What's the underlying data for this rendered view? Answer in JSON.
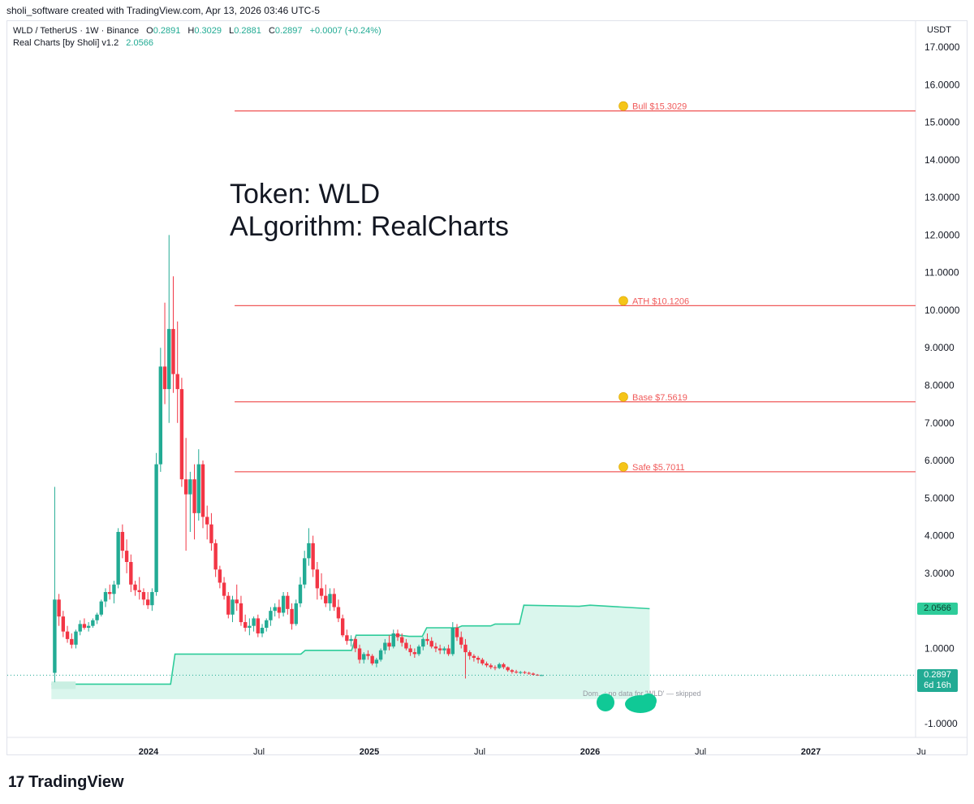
{
  "caption": "sholi_software created with TradingView.com, Apr 13, 2026 03:46 UTC-5",
  "legend": {
    "symbol": "WLD / TetherUS · 1W · Binance",
    "open_label": "O",
    "open": "0.2891",
    "high_label": "H",
    "high": "0.3029",
    "low_label": "L",
    "low": "0.2881",
    "close_label": "C",
    "close": "0.2897",
    "change": "+0.0007 (+0.24%)",
    "indicator_name": "Real Charts [by Sholi] v1.2",
    "indicator_value": "2.0566"
  },
  "annotation": {
    "line1": "Token: WLD",
    "line2": "ALgorithm: RealCharts"
  },
  "currency": "USDT",
  "badges": {
    "indicator": "2.0566",
    "last_price": "0.2897",
    "countdown": "6d 16h"
  },
  "footer": {
    "brand": "TradingView",
    "mark": "17"
  },
  "colors": {
    "up": "#22ab94",
    "down": "#f23645",
    "level": "#f05a5a",
    "fill": "#d8f5ec",
    "line": "#2ecc9a"
  },
  "chart_data": {
    "type": "candlestick",
    "ylim": [
      -1.3,
      17.6
    ],
    "yticks": [
      "17.0000",
      "16.0000",
      "15.0000",
      "14.0000",
      "13.0000",
      "12.0000",
      "11.0000",
      "10.0000",
      "9.0000",
      "8.0000",
      "7.0000",
      "6.0000",
      "5.0000",
      "4.0000",
      "3.0000",
      "2.0000",
      "1.0000",
      "-1.0000"
    ],
    "ytick_values": [
      17,
      16,
      15,
      14,
      13,
      12,
      11,
      10,
      9,
      8,
      7,
      6,
      5,
      4,
      3,
      2,
      1,
      -1
    ],
    "xlim_months": [
      2023.55,
      2027.0
    ],
    "xticks": [
      {
        "label": "2024",
        "t": 2024.0,
        "bold": true
      },
      {
        "label": "Jul",
        "t": 2024.5,
        "bold": false
      },
      {
        "label": "2025",
        "t": 2025.0,
        "bold": true
      },
      {
        "label": "Jul",
        "t": 2025.5,
        "bold": false
      },
      {
        "label": "2026",
        "t": 2026.0,
        "bold": true
      },
      {
        "label": "Jul",
        "t": 2026.5,
        "bold": false
      },
      {
        "label": "2027",
        "t": 2027.0,
        "bold": true
      },
      {
        "label": "Ju",
        "t": 2027.5,
        "bold": false
      }
    ],
    "levels": [
      {
        "name": "Bull",
        "label": "Bull  $15.3029",
        "value": 15.3029,
        "start": 2024.39
      },
      {
        "name": "ATH",
        "label": "ATH  $10.1206",
        "value": 10.1206,
        "start": 2024.39
      },
      {
        "name": "Base",
        "label": "Base  $7.5619",
        "value": 7.5619,
        "start": 2024.39
      },
      {
        "name": "Safe",
        "label": "Safe  $5.7011",
        "value": 5.7011,
        "start": 2024.39
      }
    ],
    "indicator_steps": [
      [
        2023.56,
        0.15
      ],
      [
        2023.67,
        0.15
      ],
      [
        2023.67,
        0.1
      ],
      [
        2023.66,
        0.1
      ],
      [
        2023.66,
        -0.08
      ],
      [
        2023.56,
        -0.08
      ]
    ],
    "indicator_line": [
      [
        2023.56,
        0.05
      ],
      [
        2024.1,
        0.05
      ],
      [
        2024.12,
        0.85
      ],
      [
        2024.69,
        0.85
      ],
      [
        2024.71,
        0.95
      ],
      [
        2024.92,
        0.95
      ],
      [
        2024.94,
        1.35
      ],
      [
        2025.14,
        1.35
      ],
      [
        2025.18,
        1.32
      ],
      [
        2025.24,
        1.32
      ],
      [
        2025.26,
        1.55
      ],
      [
        2025.4,
        1.55
      ],
      [
        2025.42,
        1.6
      ],
      [
        2025.55,
        1.6
      ],
      [
        2025.57,
        1.65
      ],
      [
        2025.68,
        1.65
      ],
      [
        2025.7,
        2.15
      ],
      [
        2025.95,
        2.12
      ],
      [
        2026.0,
        2.15
      ],
      [
        2026.27,
        2.0566
      ]
    ],
    "fill_bottom": -0.35,
    "last_price": 0.2897,
    "note": "Dom...: no data for 'WLD' — skipped",
    "candles": [
      {
        "o": 0.35,
        "h": 5.3,
        "l": 0.1,
        "c": 2.3
      },
      {
        "o": 2.3,
        "h": 2.45,
        "l": 1.6,
        "c": 1.85
      },
      {
        "o": 1.85,
        "h": 2.0,
        "l": 1.3,
        "c": 1.45
      },
      {
        "o": 1.45,
        "h": 1.6,
        "l": 1.15,
        "c": 1.25
      },
      {
        "o": 1.25,
        "h": 1.4,
        "l": 1.0,
        "c": 1.1
      },
      {
        "o": 1.1,
        "h": 1.5,
        "l": 1.0,
        "c": 1.45
      },
      {
        "o": 1.45,
        "h": 1.75,
        "l": 1.35,
        "c": 1.65
      },
      {
        "o": 1.65,
        "h": 1.8,
        "l": 1.5,
        "c": 1.55
      },
      {
        "o": 1.55,
        "h": 1.7,
        "l": 1.45,
        "c": 1.6
      },
      {
        "o": 1.6,
        "h": 1.8,
        "l": 1.55,
        "c": 1.75
      },
      {
        "o": 1.75,
        "h": 1.95,
        "l": 1.65,
        "c": 1.9
      },
      {
        "o": 1.9,
        "h": 2.3,
        "l": 1.85,
        "c": 2.25
      },
      {
        "o": 2.25,
        "h": 2.6,
        "l": 2.1,
        "c": 2.5
      },
      {
        "o": 2.5,
        "h": 2.7,
        "l": 2.3,
        "c": 2.45
      },
      {
        "o": 2.45,
        "h": 2.8,
        "l": 2.2,
        "c": 2.7
      },
      {
        "o": 2.7,
        "h": 4.2,
        "l": 2.6,
        "c": 4.1
      },
      {
        "o": 4.1,
        "h": 4.3,
        "l": 3.4,
        "c": 3.6
      },
      {
        "o": 3.6,
        "h": 3.9,
        "l": 3.0,
        "c": 3.3
      },
      {
        "o": 3.3,
        "h": 3.5,
        "l": 2.5,
        "c": 2.7
      },
      {
        "o": 2.7,
        "h": 2.8,
        "l": 2.4,
        "c": 2.55
      },
      {
        "o": 2.55,
        "h": 2.9,
        "l": 2.3,
        "c": 2.5
      },
      {
        "o": 2.5,
        "h": 2.6,
        "l": 2.15,
        "c": 2.3
      },
      {
        "o": 2.3,
        "h": 2.5,
        "l": 2.05,
        "c": 2.15
      },
      {
        "o": 2.15,
        "h": 2.6,
        "l": 2.0,
        "c": 2.5
      },
      {
        "o": 2.5,
        "h": 6.2,
        "l": 2.4,
        "c": 5.9
      },
      {
        "o": 5.9,
        "h": 9.0,
        "l": 5.7,
        "c": 8.5
      },
      {
        "o": 8.5,
        "h": 10.2,
        "l": 7.5,
        "c": 7.9
      },
      {
        "o": 7.9,
        "h": 12.0,
        "l": 7.0,
        "c": 9.5
      },
      {
        "o": 9.5,
        "h": 10.9,
        "l": 7.8,
        "c": 8.3
      },
      {
        "o": 8.3,
        "h": 9.7,
        "l": 7.0,
        "c": 7.9
      },
      {
        "o": 7.9,
        "h": 8.2,
        "l": 5.3,
        "c": 5.5
      },
      {
        "o": 5.5,
        "h": 6.6,
        "l": 3.6,
        "c": 5.1
      },
      {
        "o": 5.1,
        "h": 5.7,
        "l": 4.1,
        "c": 5.5
      },
      {
        "o": 5.5,
        "h": 5.9,
        "l": 3.9,
        "c": 4.6
      },
      {
        "o": 4.6,
        "h": 6.3,
        "l": 4.4,
        "c": 5.9
      },
      {
        "o": 5.9,
        "h": 6.0,
        "l": 4.2,
        "c": 4.5
      },
      {
        "o": 4.5,
        "h": 4.8,
        "l": 3.9,
        "c": 4.3
      },
      {
        "o": 4.3,
        "h": 4.6,
        "l": 3.6,
        "c": 3.8
      },
      {
        "o": 3.8,
        "h": 3.9,
        "l": 2.9,
        "c": 3.1
      },
      {
        "o": 3.1,
        "h": 3.2,
        "l": 2.6,
        "c": 2.75
      },
      {
        "o": 2.75,
        "h": 2.9,
        "l": 2.3,
        "c": 2.4
      },
      {
        "o": 2.4,
        "h": 2.5,
        "l": 1.8,
        "c": 1.9
      },
      {
        "o": 1.9,
        "h": 2.4,
        "l": 1.7,
        "c": 2.3
      },
      {
        "o": 2.3,
        "h": 2.7,
        "l": 2.0,
        "c": 2.2
      },
      {
        "o": 2.2,
        "h": 2.4,
        "l": 1.6,
        "c": 1.7
      },
      {
        "o": 1.7,
        "h": 1.9,
        "l": 1.45,
        "c": 1.55
      },
      {
        "o": 1.55,
        "h": 1.8,
        "l": 1.35,
        "c": 1.6
      },
      {
        "o": 1.6,
        "h": 1.85,
        "l": 1.45,
        "c": 1.8
      },
      {
        "o": 1.8,
        "h": 1.9,
        "l": 1.3,
        "c": 1.4
      },
      {
        "o": 1.4,
        "h": 1.65,
        "l": 1.3,
        "c": 1.55
      },
      {
        "o": 1.55,
        "h": 1.8,
        "l": 1.45,
        "c": 1.75
      },
      {
        "o": 1.75,
        "h": 2.1,
        "l": 1.6,
        "c": 2.0
      },
      {
        "o": 2.0,
        "h": 2.2,
        "l": 1.85,
        "c": 2.1
      },
      {
        "o": 2.1,
        "h": 2.3,
        "l": 1.8,
        "c": 1.95
      },
      {
        "o": 1.95,
        "h": 2.5,
        "l": 1.85,
        "c": 2.4
      },
      {
        "o": 2.4,
        "h": 2.5,
        "l": 1.9,
        "c": 2.05
      },
      {
        "o": 2.05,
        "h": 2.2,
        "l": 1.5,
        "c": 1.65
      },
      {
        "o": 1.65,
        "h": 2.3,
        "l": 1.6,
        "c": 2.2
      },
      {
        "o": 2.2,
        "h": 2.9,
        "l": 2.1,
        "c": 2.7
      },
      {
        "o": 2.7,
        "h": 3.6,
        "l": 2.6,
        "c": 3.4
      },
      {
        "o": 3.4,
        "h": 4.2,
        "l": 3.2,
        "c": 3.8
      },
      {
        "o": 3.8,
        "h": 4.0,
        "l": 2.9,
        "c": 3.1
      },
      {
        "o": 3.1,
        "h": 3.3,
        "l": 2.3,
        "c": 2.6
      },
      {
        "o": 2.6,
        "h": 3.0,
        "l": 2.3,
        "c": 2.4
      },
      {
        "o": 2.4,
        "h": 2.7,
        "l": 2.1,
        "c": 2.2
      },
      {
        "o": 2.2,
        "h": 2.6,
        "l": 2.0,
        "c": 2.45
      },
      {
        "o": 2.45,
        "h": 2.6,
        "l": 2.0,
        "c": 2.1
      },
      {
        "o": 2.1,
        "h": 2.3,
        "l": 1.7,
        "c": 1.8
      },
      {
        "o": 1.8,
        "h": 1.9,
        "l": 1.3,
        "c": 1.35
      },
      {
        "o": 1.35,
        "h": 1.5,
        "l": 1.1,
        "c": 1.2
      },
      {
        "o": 1.2,
        "h": 1.35,
        "l": 1.05,
        "c": 1.25
      },
      {
        "o": 1.25,
        "h": 1.3,
        "l": 0.9,
        "c": 1.0
      },
      {
        "o": 1.0,
        "h": 1.1,
        "l": 0.6,
        "c": 0.7
      },
      {
        "o": 0.7,
        "h": 0.9,
        "l": 0.6,
        "c": 0.85
      },
      {
        "o": 0.85,
        "h": 0.95,
        "l": 0.7,
        "c": 0.8
      },
      {
        "o": 0.8,
        "h": 0.85,
        "l": 0.55,
        "c": 0.6
      },
      {
        "o": 0.6,
        "h": 0.75,
        "l": 0.5,
        "c": 0.7
      },
      {
        "o": 0.7,
        "h": 1.0,
        "l": 0.65,
        "c": 0.95
      },
      {
        "o": 0.95,
        "h": 1.25,
        "l": 0.85,
        "c": 1.15
      },
      {
        "o": 1.15,
        "h": 1.35,
        "l": 0.95,
        "c": 1.05
      },
      {
        "o": 1.05,
        "h": 1.5,
        "l": 1.0,
        "c": 1.4
      },
      {
        "o": 1.4,
        "h": 1.5,
        "l": 1.2,
        "c": 1.3
      },
      {
        "o": 1.3,
        "h": 1.4,
        "l": 1.05,
        "c": 1.15
      },
      {
        "o": 1.15,
        "h": 1.25,
        "l": 0.95,
        "c": 1.0
      },
      {
        "o": 1.0,
        "h": 1.1,
        "l": 0.8,
        "c": 0.9
      },
      {
        "o": 0.9,
        "h": 1.0,
        "l": 0.75,
        "c": 0.85
      },
      {
        "o": 0.85,
        "h": 1.1,
        "l": 0.8,
        "c": 1.05
      },
      {
        "o": 1.05,
        "h": 1.3,
        "l": 0.95,
        "c": 1.25
      },
      {
        "o": 1.25,
        "h": 1.4,
        "l": 1.1,
        "c": 1.2
      },
      {
        "o": 1.2,
        "h": 1.3,
        "l": 1.0,
        "c": 1.05
      },
      {
        "o": 1.05,
        "h": 1.15,
        "l": 0.9,
        "c": 1.0
      },
      {
        "o": 1.0,
        "h": 1.1,
        "l": 0.85,
        "c": 0.95
      },
      {
        "o": 0.95,
        "h": 1.05,
        "l": 0.85,
        "c": 1.0
      },
      {
        "o": 1.0,
        "h": 1.1,
        "l": 0.8,
        "c": 0.85
      },
      {
        "o": 0.85,
        "h": 1.7,
        "l": 0.8,
        "c": 1.55
      },
      {
        "o": 1.55,
        "h": 1.65,
        "l": 1.2,
        "c": 1.3
      },
      {
        "o": 1.3,
        "h": 1.45,
        "l": 1.0,
        "c": 1.1
      },
      {
        "o": 1.1,
        "h": 1.25,
        "l": 0.2,
        "c": 0.9
      },
      {
        "o": 0.9,
        "h": 0.95,
        "l": 0.7,
        "c": 0.8
      },
      {
        "o": 0.8,
        "h": 0.85,
        "l": 0.65,
        "c": 0.75
      },
      {
        "o": 0.75,
        "h": 0.8,
        "l": 0.6,
        "c": 0.7
      },
      {
        "o": 0.7,
        "h": 0.75,
        "l": 0.55,
        "c": 0.6
      },
      {
        "o": 0.6,
        "h": 0.65,
        "l": 0.5,
        "c": 0.55
      },
      {
        "o": 0.55,
        "h": 0.6,
        "l": 0.45,
        "c": 0.5
      },
      {
        "o": 0.5,
        "h": 0.55,
        "l": 0.42,
        "c": 0.48
      },
      {
        "o": 0.48,
        "h": 0.62,
        "l": 0.45,
        "c": 0.58
      },
      {
        "o": 0.58,
        "h": 0.62,
        "l": 0.45,
        "c": 0.5
      },
      {
        "o": 0.5,
        "h": 0.52,
        "l": 0.38,
        "c": 0.42
      },
      {
        "o": 0.42,
        "h": 0.45,
        "l": 0.33,
        "c": 0.38
      },
      {
        "o": 0.38,
        "h": 0.43,
        "l": 0.33,
        "c": 0.36
      },
      {
        "o": 0.36,
        "h": 0.4,
        "l": 0.32,
        "c": 0.37
      },
      {
        "o": 0.37,
        "h": 0.4,
        "l": 0.32,
        "c": 0.35
      },
      {
        "o": 0.35,
        "h": 0.38,
        "l": 0.3,
        "c": 0.33
      },
      {
        "o": 0.33,
        "h": 0.36,
        "l": 0.28,
        "c": 0.3
      },
      {
        "o": 0.3,
        "h": 0.32,
        "l": 0.27,
        "c": 0.29
      },
      {
        "o": 0.2891,
        "h": 0.3029,
        "l": 0.2881,
        "c": 0.2897
      }
    ],
    "first_candle_t": 2023.575,
    "candle_step_t": 0.01918
  }
}
